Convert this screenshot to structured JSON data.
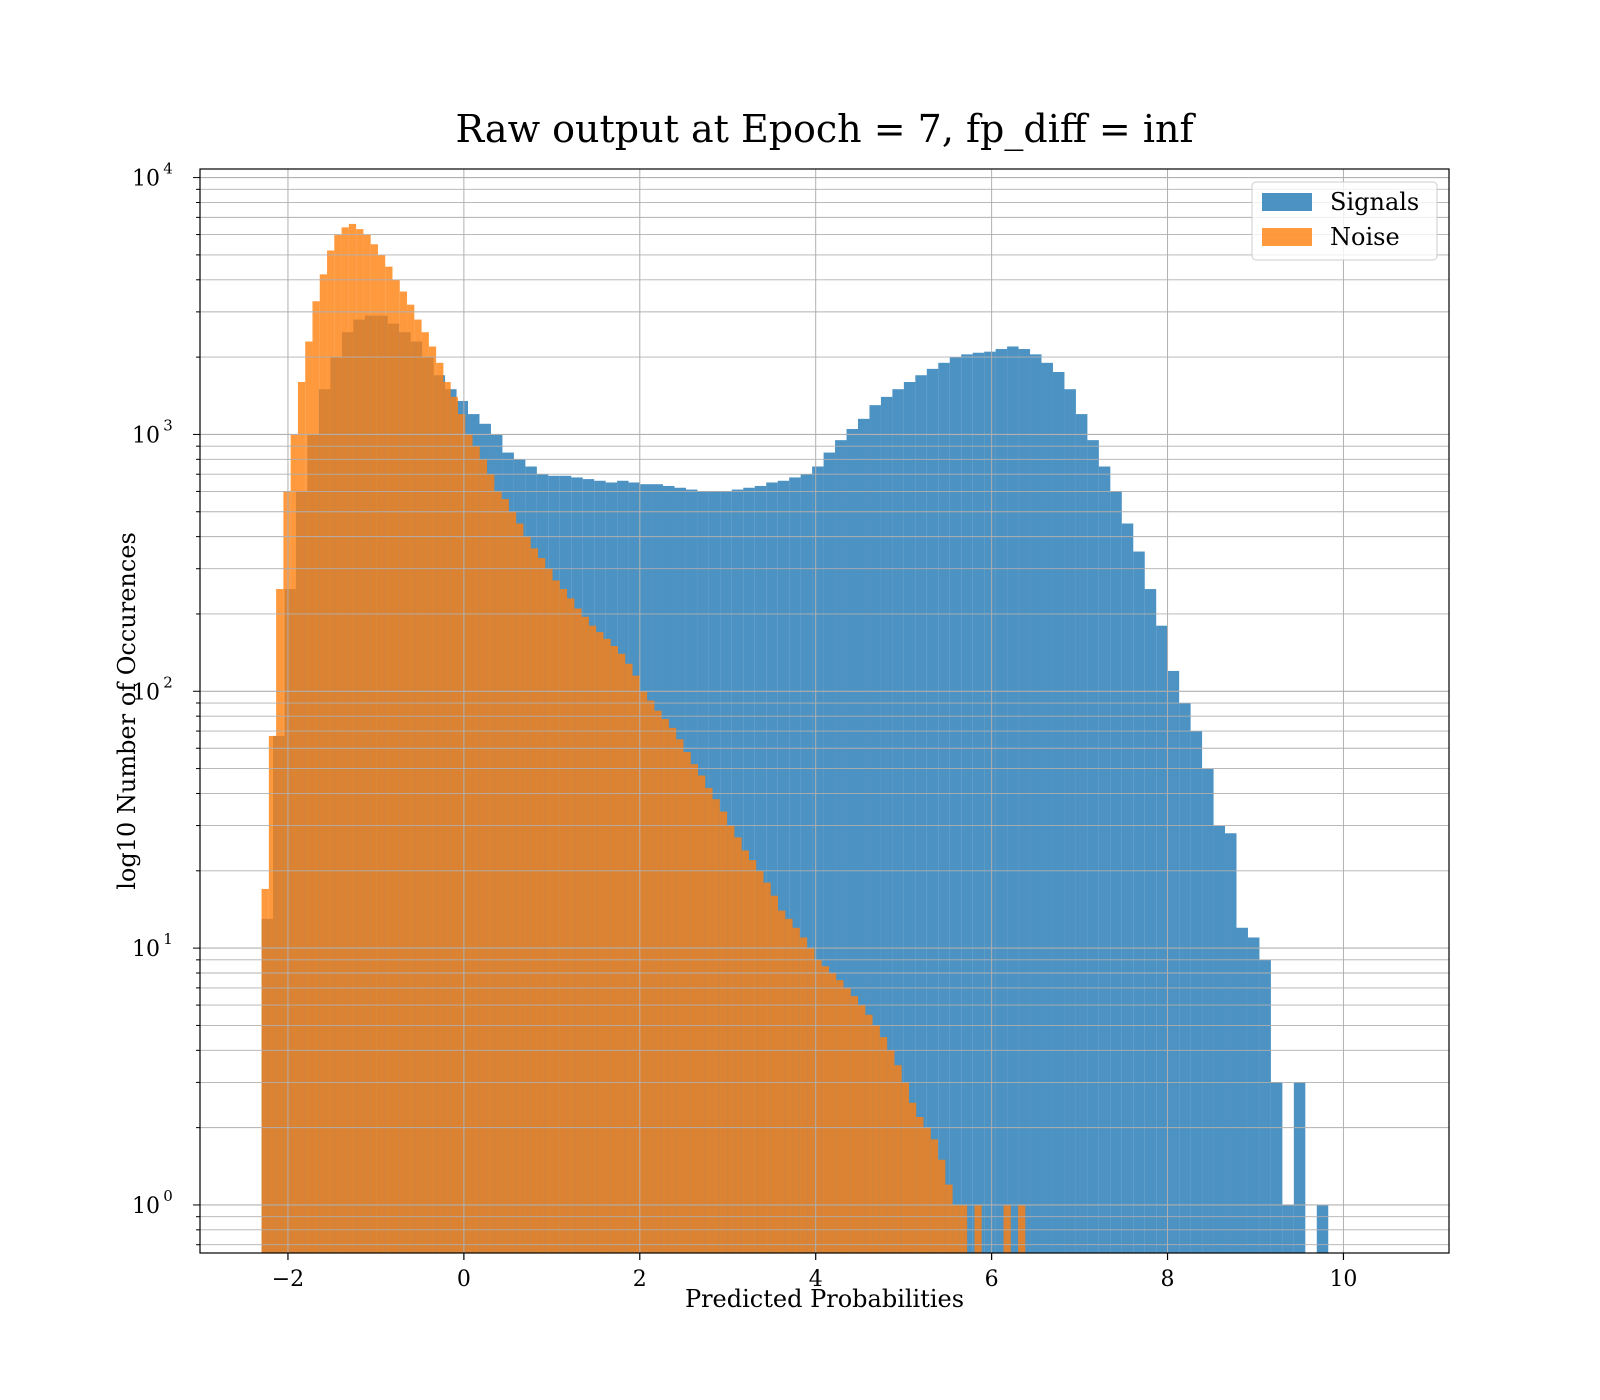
{
  "chart_data": {
    "type": "histogram",
    "title": "Raw output at Epoch = 7, fp_diff = inf",
    "xlabel": "Predicted Probabilities",
    "ylabel": "log10 Number of Occurences",
    "xlim": [
      -3,
      11.2
    ],
    "ylim": [
      0.65,
      10800
    ],
    "yscale": "log",
    "grid": true,
    "legend_position": "top-right",
    "xticks": [
      -2,
      0,
      2,
      4,
      6,
      8,
      10
    ],
    "xtick_labels": [
      "−2",
      "0",
      "2",
      "4",
      "6",
      "8",
      "10"
    ],
    "yticks": [
      {
        "value": 1,
        "base": "10",
        "exp": "0"
      },
      {
        "value": 10,
        "base": "10",
        "exp": "1"
      },
      {
        "value": 100,
        "base": "10",
        "exp": "2"
      },
      {
        "value": 1000,
        "base": "10",
        "exp": "3"
      },
      {
        "value": 10000,
        "base": "10",
        "exp": "4"
      }
    ],
    "series": [
      {
        "name": "Signals",
        "color": "#1f77b4",
        "alpha": 0.8,
        "bin_start": -2.3,
        "bin_width": 0.1304,
        "counts": [
          13,
          67,
          250,
          600,
          1000,
          1500,
          2000,
          2500,
          2800,
          2900,
          2900,
          2700,
          2500,
          2300,
          2000,
          1700,
          1500,
          1350,
          1200,
          1100,
          1000,
          850,
          800,
          750,
          700,
          690,
          690,
          680,
          670,
          660,
          650,
          660,
          650,
          640,
          640,
          630,
          620,
          610,
          600,
          600,
          600,
          610,
          620,
          630,
          650,
          660,
          680,
          700,
          750,
          850,
          950,
          1050,
          1150,
          1300,
          1400,
          1500,
          1600,
          1700,
          1800,
          1900,
          2000,
          2050,
          2080,
          2100,
          2150,
          2200,
          2150,
          2050,
          1900,
          1750,
          1500,
          1200,
          950,
          750,
          600,
          450,
          350,
          250,
          180,
          120,
          90,
          70,
          50,
          30,
          28,
          12,
          11,
          9,
          3,
          1,
          3,
          0,
          1
        ]
      },
      {
        "name": "Noise",
        "color": "#ff7f0e",
        "alpha": 0.8,
        "bin_start": -2.3,
        "bin_width": 0.0827,
        "counts": [
          17,
          67,
          250,
          600,
          1000,
          1600,
          2300,
          3300,
          4200,
          5200,
          6000,
          6400,
          6600,
          6300,
          6000,
          5500,
          5000,
          4500,
          4000,
          3600,
          3200,
          2800,
          2500,
          2200,
          1900,
          1600,
          1400,
          1200,
          1000,
          900,
          800,
          700,
          600,
          560,
          500,
          450,
          400,
          360,
          330,
          300,
          270,
          250,
          230,
          210,
          195,
          180,
          170,
          160,
          150,
          140,
          128,
          115,
          100,
          92,
          84,
          78,
          72,
          65,
          58,
          52,
          47,
          42,
          38,
          34,
          30,
          27,
          24,
          22,
          20,
          18,
          16,
          14,
          13,
          12,
          11,
          10,
          9,
          8.5,
          8,
          7.5,
          7,
          6.5,
          6,
          5.5,
          5,
          4.5,
          4,
          3.5,
          3,
          2.5,
          2.2,
          2,
          1.8,
          1.5,
          1.2,
          1,
          1,
          0,
          1,
          0,
          0,
          0,
          1,
          0,
          1
        ]
      }
    ]
  }
}
